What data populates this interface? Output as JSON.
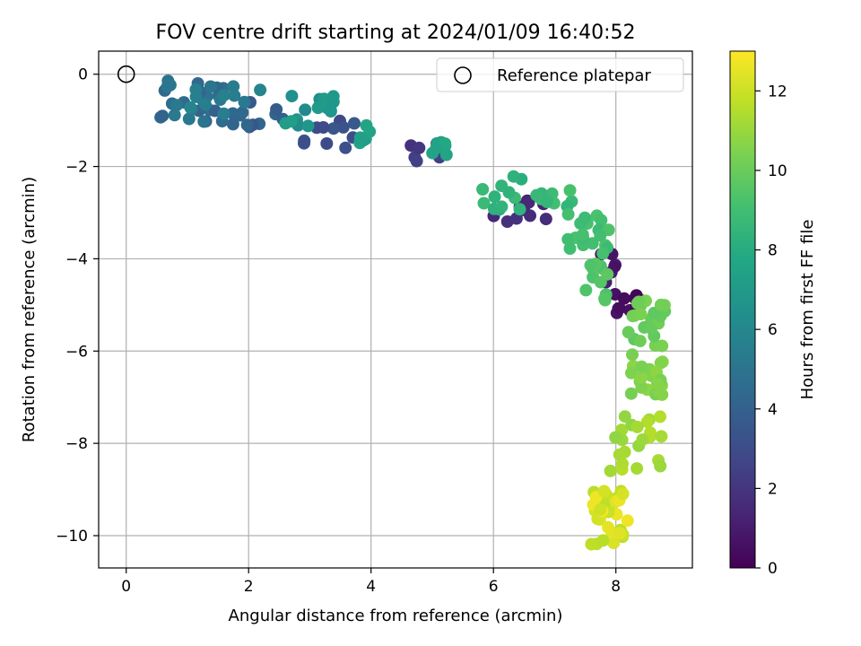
{
  "chart_data": {
    "type": "scatter",
    "title": "FOV centre drift starting at 2024/01/09 16:40:52",
    "xlabel": "Angular distance from reference (arcmin)",
    "ylabel": "Rotation from reference (arcmin)",
    "xlim": [
      -0.45,
      9.25
    ],
    "ylim": [
      -10.7,
      0.5
    ],
    "xticks": [
      0,
      2,
      4,
      6,
      8
    ],
    "yticks": [
      0,
      -2,
      -4,
      -6,
      -8,
      -10
    ],
    "xtick_labels": [
      "0",
      "2",
      "4",
      "6",
      "8"
    ],
    "ytick_labels": [
      "0",
      "−2",
      "−4",
      "−6",
      "−8",
      "−10"
    ],
    "grid": true,
    "legend": {
      "placement": "top-right",
      "entries": [
        {
          "label": "Reference platepar",
          "marker": "open-circle"
        }
      ]
    },
    "reference_point": {
      "x": 0,
      "y": 0
    },
    "colorbar": {
      "label": "Hours from first FF file",
      "range": [
        0,
        13
      ],
      "ticks": [
        0,
        2,
        4,
        6,
        8,
        10,
        12
      ],
      "tick_labels": [
        "0",
        "2",
        "4",
        "6",
        "8",
        "10",
        "12"
      ],
      "colormap": "viridis"
    },
    "clusters": [
      {
        "x": [
          7.9,
          8.4
        ],
        "y": [
          -5.3,
          -4.7
        ],
        "hours": [
          0.1,
          0.8
        ],
        "n": 12
      },
      {
        "x": [
          7.6,
          8.0
        ],
        "y": [
          -4.6,
          -3.6
        ],
        "hours": [
          0.6,
          1.4
        ],
        "n": 8
      },
      {
        "x": [
          6.0,
          6.9
        ],
        "y": [
          -3.3,
          -2.5
        ],
        "hours": [
          1.2,
          2.0
        ],
        "n": 10
      },
      {
        "x": [
          4.6,
          5.2
        ],
        "y": [
          -2.2,
          -1.5
        ],
        "hours": [
          1.8,
          2.7
        ],
        "n": 7
      },
      {
        "x": [
          2.9,
          3.9
        ],
        "y": [
          -1.7,
          -0.9
        ],
        "hours": [
          2.6,
          3.6
        ],
        "n": 11
      },
      {
        "x": [
          1.6,
          2.8
        ],
        "y": [
          -1.15,
          -0.6
        ],
        "hours": [
          3.4,
          4.4
        ],
        "n": 12
      },
      {
        "x": [
          0.3,
          1.6
        ],
        "y": [
          -1.05,
          -0.1
        ],
        "hours": [
          4.0,
          5.4
        ],
        "n": 28
      },
      {
        "x": [
          1.0,
          2.2
        ],
        "y": [
          -0.9,
          -0.2
        ],
        "hours": [
          5.2,
          6.0
        ],
        "n": 10
      },
      {
        "x": [
          2.6,
          3.4
        ],
        "y": [
          -1.15,
          -0.3
        ],
        "hours": [
          6.0,
          7.2
        ],
        "n": 18
      },
      {
        "x": [
          3.8,
          4.1
        ],
        "y": [
          -1.5,
          -1.05
        ],
        "hours": [
          7.2,
          7.8
        ],
        "n": 7
      },
      {
        "x": [
          5.0,
          5.3
        ],
        "y": [
          -1.75,
          -1.45
        ],
        "hours": [
          7.4,
          8.0
        ],
        "n": 7
      },
      {
        "x": [
          5.8,
          6.5
        ],
        "y": [
          -3.0,
          -2.1
        ],
        "hours": [
          8.0,
          8.8
        ],
        "n": 12
      },
      {
        "x": [
          6.7,
          7.3
        ],
        "y": [
          -3.0,
          -2.5
        ],
        "hours": [
          8.4,
          9.2
        ],
        "n": 10
      },
      {
        "x": [
          7.2,
          7.9
        ],
        "y": [
          -3.9,
          -3.0
        ],
        "hours": [
          8.8,
          9.4
        ],
        "n": 20
      },
      {
        "x": [
          7.5,
          7.9
        ],
        "y": [
          -5.0,
          -4.0
        ],
        "hours": [
          9.2,
          9.8
        ],
        "n": 12
      },
      {
        "x": [
          8.2,
          8.8
        ],
        "y": [
          -5.9,
          -4.9
        ],
        "hours": [
          9.6,
          10.4
        ],
        "n": 22
      },
      {
        "x": [
          8.2,
          8.8
        ],
        "y": [
          -7.0,
          -6.0
        ],
        "hours": [
          10.2,
          10.8
        ],
        "n": 20
      },
      {
        "x": [
          7.9,
          8.8
        ],
        "y": [
          -8.6,
          -7.2
        ],
        "hours": [
          10.8,
          11.6
        ],
        "n": 22
      },
      {
        "x": [
          7.6,
          8.3
        ],
        "y": [
          -10.2,
          -8.9
        ],
        "hours": [
          11.6,
          12.8
        ],
        "n": 30
      }
    ]
  }
}
